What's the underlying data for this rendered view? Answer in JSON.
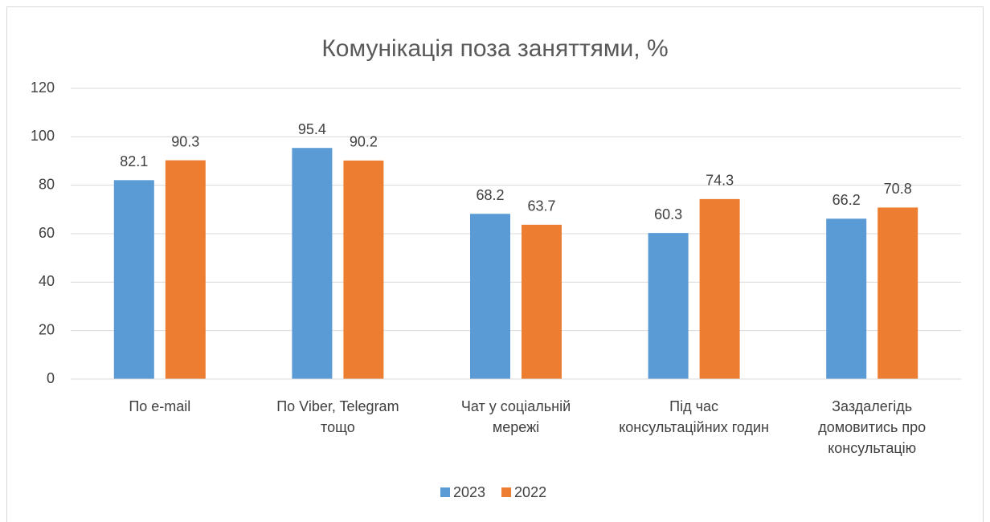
{
  "chart_data": {
    "type": "bar",
    "title": "Комунікація поза заняттями, %",
    "categories": [
      "По e-mail",
      "По Viber, Telegram тощо",
      "Чат у соціальній мережі",
      "Під час консультаційних годин",
      "Заздалегідь домовитись про консультацію"
    ],
    "series": [
      {
        "name": "2023",
        "color": "#5b9bd5",
        "values": [
          82.1,
          95.4,
          68.2,
          60.3,
          66.2
        ]
      },
      {
        "name": "2022",
        "color": "#ed7d31",
        "values": [
          90.3,
          90.2,
          63.7,
          74.3,
          70.8
        ]
      }
    ],
    "ylim": [
      0,
      120
    ],
    "yticks": [
      0,
      20,
      40,
      60,
      80,
      100,
      120
    ],
    "grid": true,
    "legend": "bottom"
  }
}
